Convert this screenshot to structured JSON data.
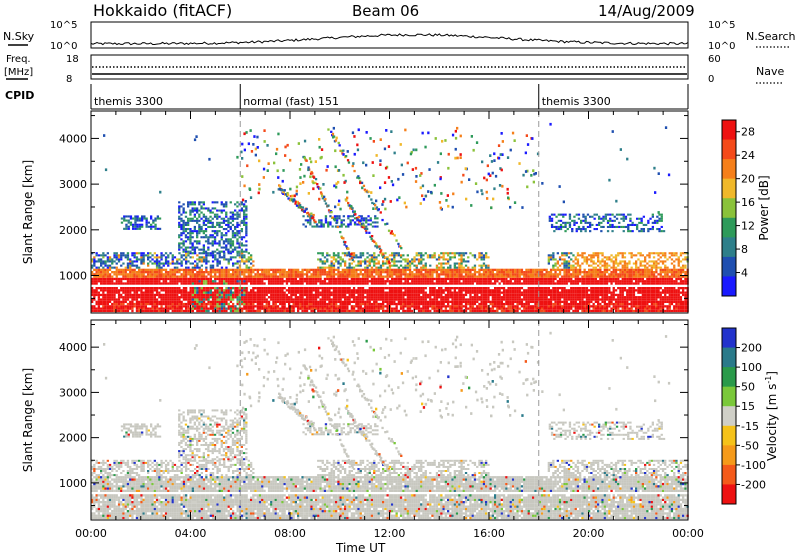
{
  "header": {
    "title": "Hokkaido (fitACF)",
    "beam": "Beam 06",
    "date": "14/Aug/2009"
  },
  "top_panels": {
    "nsky_label": "N.Sky",
    "nsearch_label": "N.Search",
    "nsky_ticks": [
      "10^5",
      "10^0"
    ],
    "nsky_right_ticks": [
      "10^5",
      "10^0"
    ],
    "freq_label": "Freq.",
    "freq_unit": "[MHz]",
    "freq_ticks": [
      "18",
      "8"
    ],
    "nave_label": "Nave",
    "nave_ticks": [
      "60",
      "0"
    ],
    "cpid_label": "CPID",
    "cpid_segments": [
      {
        "label": "themis 3300",
        "start_hour": 0,
        "end_hour": 6
      },
      {
        "label": "normal (fast) 151",
        "start_hour": 6,
        "end_hour": 18
      },
      {
        "label": "themis 3300",
        "start_hour": 18,
        "end_hour": 24
      }
    ]
  },
  "chart_data": [
    {
      "type": "heatmap",
      "name": "power-panel",
      "ylabel": "Slant Range [km]",
      "xlabel": "",
      "xlim": [
        0,
        24
      ],
      "ylim": [
        180,
        4600
      ],
      "yticks": [
        "1000",
        "2000",
        "3000",
        "4000"
      ],
      "ytick_values": [
        1000,
        2000,
        3000,
        4000
      ],
      "colorbar": {
        "label": "Power [dB]",
        "ticks": [
          "4",
          "8",
          "12",
          "16",
          "20",
          "24",
          "28"
        ],
        "tick_values": [
          4,
          8,
          12,
          16,
          20,
          24,
          28
        ],
        "range": [
          0,
          30
        ],
        "colors": [
          "#1a1aff",
          "#1f4fb0",
          "#2e7f8a",
          "#2e9a5a",
          "#8ac23a",
          "#f0b82a",
          "#f57f1a",
          "#f44a1a",
          "#ee1111"
        ]
      }
    },
    {
      "type": "heatmap",
      "name": "velocity-panel",
      "ylabel": "Slant Range [km]",
      "xlabel": "Time UT",
      "xlim": [
        0,
        24
      ],
      "ylim": [
        180,
        4600
      ],
      "xticks": [
        "00:00",
        "04:00",
        "08:00",
        "12:00",
        "16:00",
        "20:00",
        "00:00"
      ],
      "xtick_values": [
        0,
        4,
        8,
        12,
        16,
        20,
        24
      ],
      "yticks": [
        "1000",
        "2000",
        "3000",
        "4000"
      ],
      "ytick_values": [
        1000,
        2000,
        3000,
        4000
      ],
      "colorbar": {
        "label": "Velocity [m s",
        "label_sup": "-1",
        "label_end": "]",
        "ticks": [
          "200",
          "100",
          "50",
          "15",
          "-15",
          "-50",
          "-100",
          "-200"
        ],
        "tick_values": [
          200,
          100,
          50,
          15,
          -15,
          -50,
          -100,
          -200
        ],
        "colors": [
          "#2233cc",
          "#2a7a8a",
          "#2a9a4a",
          "#7ac83a",
          "#cfcfc7",
          "#f5c21a",
          "#f59a1a",
          "#f45a1a",
          "#ee1111"
        ]
      }
    }
  ],
  "colors": {
    "ground_scatter": "#c8c8c0",
    "frame": "#000000",
    "dashed_divider": "#9a9a9a"
  }
}
